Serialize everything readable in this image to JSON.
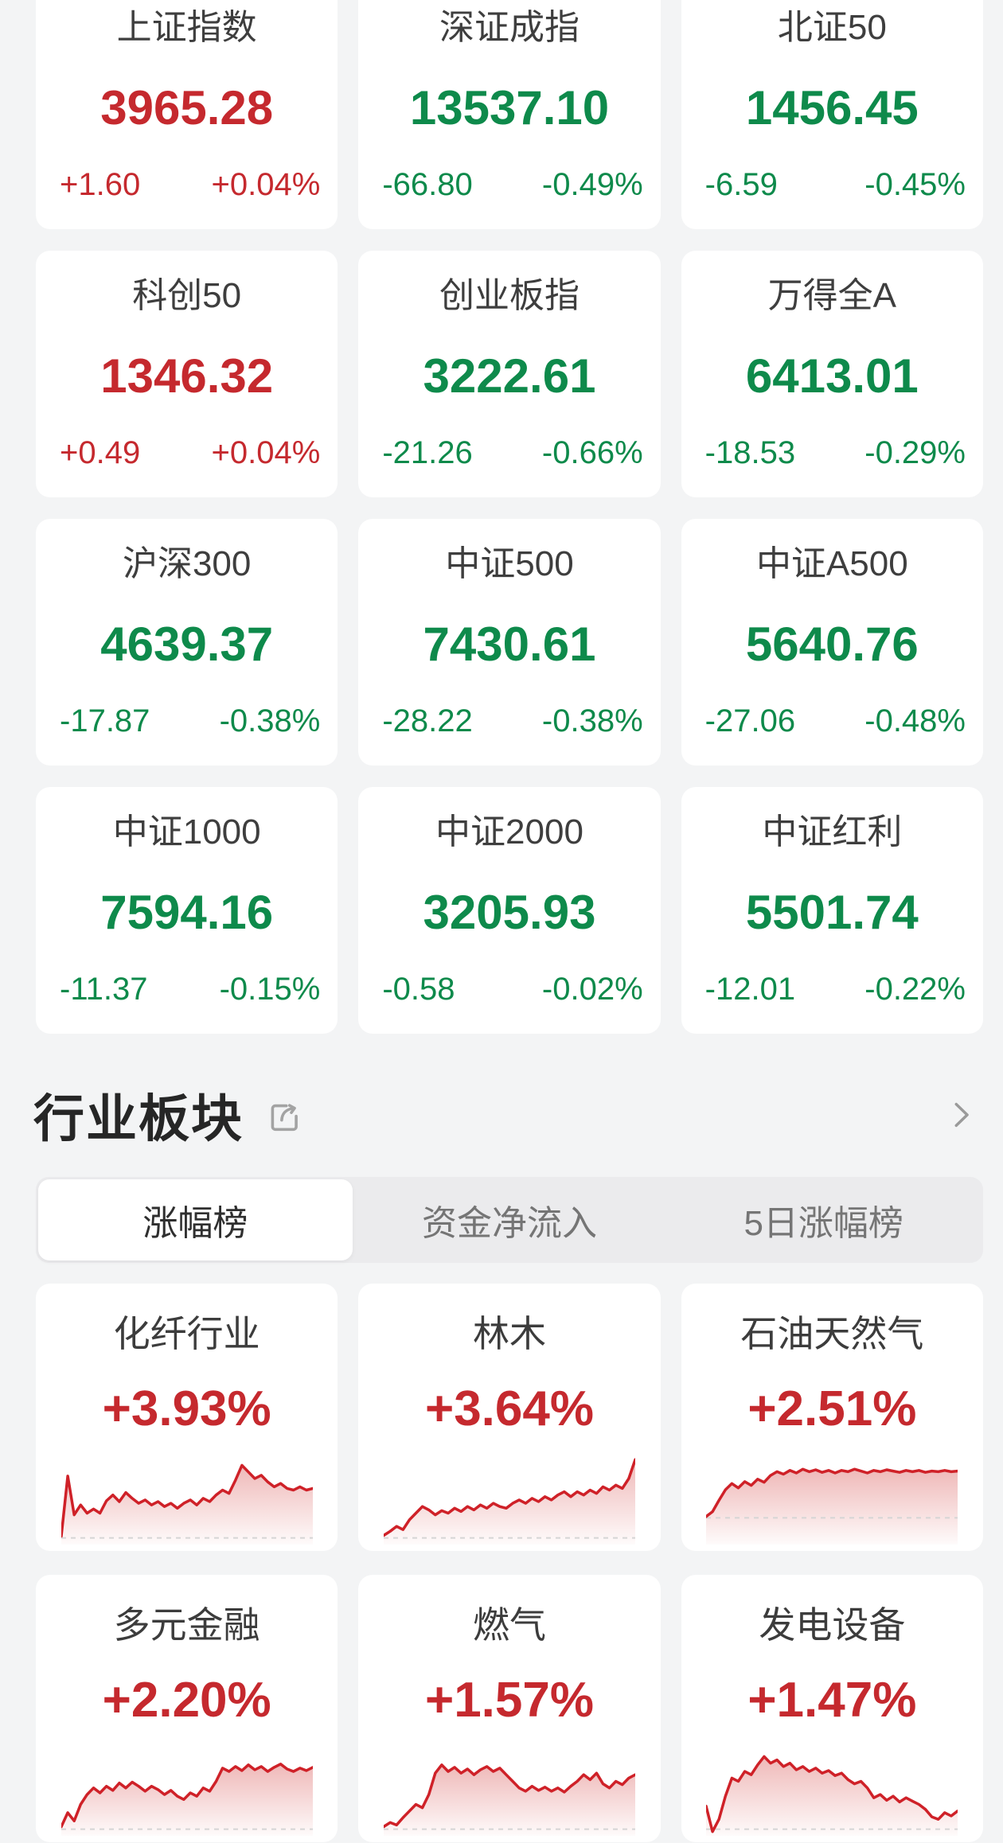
{
  "colors": {
    "up": "#c5292e",
    "down": "#0e8a4b",
    "page_bg": "#f3f4f5",
    "card_bg": "#ffffff",
    "spark_line": "#cf2128",
    "spark_fill": "#d0302f",
    "baseline": "#d5d5d5",
    "tab_bar_bg": "#ebebed"
  },
  "index_cards": [
    {
      "name": "上证指数",
      "value": "3965.28",
      "change": "+1.60",
      "pct": "+0.04%",
      "dir": "up"
    },
    {
      "name": "深证成指",
      "value": "13537.10",
      "change": "-66.80",
      "pct": "-0.49%",
      "dir": "down"
    },
    {
      "name": "北证50",
      "value": "1456.45",
      "change": "-6.59",
      "pct": "-0.45%",
      "dir": "down"
    },
    {
      "name": "科创50",
      "value": "1346.32",
      "change": "+0.49",
      "pct": "+0.04%",
      "dir": "up"
    },
    {
      "name": "创业板指",
      "value": "3222.61",
      "change": "-21.26",
      "pct": "-0.66%",
      "dir": "down"
    },
    {
      "name": "万得全A",
      "value": "6413.01",
      "change": "-18.53",
      "pct": "-0.29%",
      "dir": "down"
    },
    {
      "name": "沪深300",
      "value": "4639.37",
      "change": "-17.87",
      "pct": "-0.38%",
      "dir": "down"
    },
    {
      "name": "中证500",
      "value": "7430.61",
      "change": "-28.22",
      "pct": "-0.38%",
      "dir": "down"
    },
    {
      "name": "中证A500",
      "value": "5640.76",
      "change": "-27.06",
      "pct": "-0.48%",
      "dir": "down"
    },
    {
      "name": "中证1000",
      "value": "7594.16",
      "change": "-11.37",
      "pct": "-0.15%",
      "dir": "down"
    },
    {
      "name": "中证2000",
      "value": "3205.93",
      "change": "-0.58",
      "pct": "-0.02%",
      "dir": "down"
    },
    {
      "name": "中证红利",
      "value": "5501.74",
      "change": "-12.01",
      "pct": "-0.22%",
      "dir": "down"
    }
  ],
  "sector_section": {
    "title": "行业板块",
    "share_icon": "share-icon",
    "chevron_icon": "chevron-right-icon",
    "tabs": [
      {
        "label": "涨幅榜",
        "active": true
      },
      {
        "label": "资金净流入",
        "active": false
      },
      {
        "label": "5日涨幅榜",
        "active": false
      }
    ]
  },
  "sector_cards": [
    {
      "name": "化纤行业",
      "pct": "+3.93%",
      "dir": "up",
      "spark": {
        "baseline": 0.93,
        "values": [
          2,
          75,
          28,
          40,
          30,
          35,
          30,
          45,
          52,
          44,
          55,
          48,
          42,
          46,
          40,
          44,
          38,
          42,
          36,
          42,
          46,
          40,
          48,
          44,
          52,
          58,
          54,
          70,
          88,
          80,
          72,
          76,
          68,
          62,
          66,
          60,
          58,
          62,
          58,
          60
        ]
      }
    },
    {
      "name": "林木",
      "pct": "+3.64%",
      "dir": "up",
      "spark": {
        "baseline": 0.93,
        "values": [
          3,
          8,
          14,
          10,
          22,
          30,
          38,
          34,
          28,
          33,
          30,
          36,
          32,
          38,
          34,
          40,
          36,
          42,
          38,
          36,
          42,
          46,
          42,
          48,
          44,
          50,
          46,
          52,
          56,
          50,
          56,
          52,
          58,
          54,
          62,
          58,
          64,
          60,
          72,
          95
        ]
      }
    },
    {
      "name": "石油天然气",
      "pct": "+2.51%",
      "dir": "up",
      "spark": {
        "baseline": 0.72,
        "values": [
          2,
          10,
          28,
          45,
          55,
          48,
          58,
          52,
          62,
          57,
          68,
          74,
          70,
          76,
          72,
          78,
          74,
          77,
          73,
          76,
          72,
          76,
          74,
          78,
          75,
          72,
          76,
          74,
          77,
          75,
          73,
          76,
          74,
          76,
          73,
          75,
          74,
          76,
          74,
          75
        ]
      }
    },
    {
      "name": "多元金融",
      "pct": "+2.20%",
      "dir": "up",
      "spark": {
        "baseline": 0.93,
        "values": [
          3,
          20,
          10,
          30,
          42,
          50,
          44,
          52,
          47,
          56,
          50,
          57,
          52,
          46,
          52,
          48,
          42,
          47,
          40,
          36,
          44,
          40,
          50,
          46,
          58,
          74,
          70,
          76,
          71,
          78,
          72,
          76,
          70,
          75,
          79,
          73,
          70,
          74,
          71,
          75
        ]
      }
    },
    {
      "name": "燃气",
      "pct": "+1.57%",
      "dir": "up",
      "spark": {
        "baseline": 0.93,
        "values": [
          3,
          8,
          5,
          14,
          22,
          30,
          26,
          42,
          68,
          78,
          70,
          75,
          68,
          73,
          66,
          72,
          76,
          70,
          74,
          66,
          58,
          50,
          46,
          52,
          47,
          51,
          46,
          50,
          45,
          52,
          58,
          66,
          60,
          68,
          55,
          50,
          58,
          54,
          62,
          66
        ]
      }
    },
    {
      "name": "发电设备",
      "pct": "+1.47%",
      "dir": "up",
      "spark": {
        "baseline": 0.93,
        "values": [
          28,
          -3,
          12,
          40,
          62,
          58,
          70,
          66,
          78,
          88,
          80,
          84,
          76,
          80,
          72,
          76,
          70,
          74,
          68,
          71,
          65,
          68,
          60,
          55,
          58,
          50,
          38,
          42,
          35,
          40,
          33,
          38,
          34,
          30,
          24,
          15,
          12,
          20,
          16,
          22
        ]
      }
    }
  ]
}
